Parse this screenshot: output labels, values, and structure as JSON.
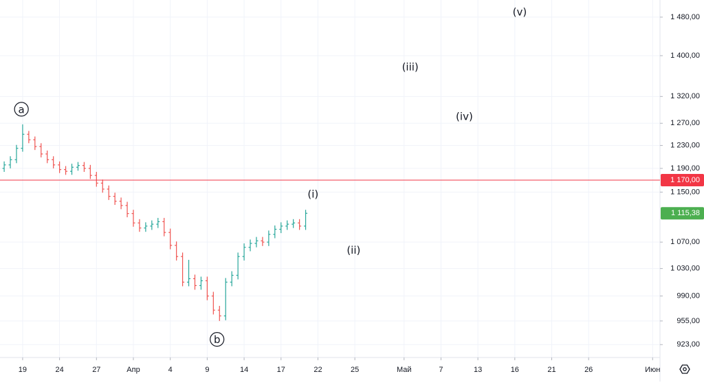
{
  "chart_data": {
    "type": "ohlc",
    "log_scale": true,
    "grid": true,
    "up_color": "#26a69a",
    "down_color": "#ef5350",
    "x": [
      -1.5,
      -1,
      -0.5,
      0,
      0.5,
      1,
      1.5,
      2,
      2.5,
      3,
      3.5,
      4,
      4.5,
      5,
      5.5,
      6,
      6.5,
      7,
      7.5,
      8,
      8.5,
      9,
      9.5,
      10,
      10.5,
      11,
      11.5,
      12,
      12.5,
      13,
      13.5,
      14,
      14.5,
      15,
      15.5,
      16,
      16.5,
      17,
      17.5,
      18,
      18.5,
      19,
      19.5,
      20,
      20.5,
      21,
      21.5,
      22,
      22.5,
      23
    ],
    "open": [
      1190,
      1196,
      1205,
      1225,
      1250,
      1240,
      1228,
      1215,
      1205,
      1196,
      1188,
      1185,
      1192,
      1195,
      1190,
      1178,
      1165,
      1155,
      1143,
      1135,
      1128,
      1115,
      1100,
      1092,
      1095,
      1098,
      1102,
      1085,
      1065,
      1048,
      1010,
      1015,
      1005,
      1012,
      990,
      970,
      962,
      1010,
      1020,
      1048,
      1062,
      1068,
      1072,
      1070,
      1082,
      1090,
      1095,
      1098,
      1100,
      1095
    ],
    "high": [
      1202,
      1211,
      1231,
      1268,
      1256,
      1246,
      1234,
      1221,
      1211,
      1202,
      1194,
      1198,
      1201,
      1201,
      1196,
      1184,
      1171,
      1161,
      1149,
      1141,
      1134,
      1121,
      1106,
      1101,
      1104,
      1108,
      1108,
      1091,
      1071,
      1054,
      1043,
      1021,
      1018,
      1018,
      996,
      976,
      1016,
      1026,
      1054,
      1068,
      1074,
      1078,
      1078,
      1088,
      1096,
      1101,
      1104,
      1106,
      1106,
      1121
    ],
    "low": [
      1184,
      1190,
      1199,
      1219,
      1234,
      1222,
      1209,
      1199,
      1190,
      1182,
      1179,
      1179,
      1186,
      1184,
      1172,
      1159,
      1149,
      1137,
      1129,
      1122,
      1109,
      1094,
      1086,
      1086,
      1089,
      1092,
      1079,
      1059,
      1042,
      1004,
      1004,
      999,
      999,
      984,
      964,
      955,
      956,
      1004,
      1014,
      1042,
      1056,
      1062,
      1064,
      1064,
      1076,
      1084,
      1089,
      1092,
      1089,
      1089
    ],
    "close": [
      1196,
      1205,
      1225,
      1250,
      1240,
      1228,
      1215,
      1205,
      1196,
      1188,
      1185,
      1192,
      1195,
      1190,
      1178,
      1165,
      1155,
      1143,
      1135,
      1128,
      1115,
      1100,
      1092,
      1095,
      1098,
      1102,
      1085,
      1065,
      1048,
      1010,
      1015,
      1005,
      1012,
      990,
      970,
      962,
      1010,
      1020,
      1048,
      1062,
      1068,
      1072,
      1070,
      1082,
      1090,
      1095,
      1098,
      1100,
      1095,
      1115.38
    ],
    "xlim": [
      -1.84,
      51.8
    ],
    "xticks": [
      {
        "value": 0,
        "label": "19"
      },
      {
        "value": 3,
        "label": "24"
      },
      {
        "value": 6,
        "label": "27"
      },
      {
        "value": 9,
        "label": "Апр"
      },
      {
        "value": 12,
        "label": "4"
      },
      {
        "value": 15,
        "label": "9"
      },
      {
        "value": 18,
        "label": "14"
      },
      {
        "value": 21,
        "label": "17"
      },
      {
        "value": 24,
        "label": "22"
      },
      {
        "value": 27,
        "label": "25"
      },
      {
        "value": 31,
        "label": "Май"
      },
      {
        "value": 34,
        "label": "7"
      },
      {
        "value": 37,
        "label": "13"
      },
      {
        "value": 40,
        "label": "16"
      },
      {
        "value": 43,
        "label": "21"
      },
      {
        "value": 46,
        "label": "26"
      },
      {
        "value": 51.2,
        "label": "Июн"
      }
    ],
    "ylim": [
      906,
      1517
    ],
    "yticks": [
      {
        "value": 1480,
        "label": "1 480,00"
      },
      {
        "value": 1400,
        "label": "1 400,00"
      },
      {
        "value": 1320,
        "label": "1 320,00"
      },
      {
        "value": 1270,
        "label": "1 270,00"
      },
      {
        "value": 1230,
        "label": "1 230,00"
      },
      {
        "value": 1190,
        "label": "1 190,00"
      },
      {
        "value": 1150,
        "label": "1 150,00"
      },
      {
        "value": 1070,
        "label": "1 070,00"
      },
      {
        "value": 1030,
        "label": "1 030,00"
      },
      {
        "value": 990,
        "label": "990,00"
      },
      {
        "value": 955,
        "label": "955,00"
      },
      {
        "value": 923,
        "label": "923,00"
      }
    ],
    "level": {
      "value": 1170,
      "label": "1 170,00",
      "color": "#f23645"
    },
    "last_price": {
      "value": 1115.38,
      "label": "1 115,38",
      "color": "#4caf50"
    },
    "annotations": [
      {
        "text": "a",
        "circled": true,
        "x": -0.1,
        "y": 1296
      },
      {
        "text": "b",
        "circled": true,
        "x": 15.8,
        "y": 930
      },
      {
        "text": "(i)",
        "x": 23.6,
        "y": 1147
      },
      {
        "text": "(ii)",
        "x": 26.9,
        "y": 1058
      },
      {
        "text": "(iii)",
        "x": 31.5,
        "y": 1378
      },
      {
        "text": "(iv)",
        "x": 35.9,
        "y": 1283
      },
      {
        "text": "(v)",
        "x": 40.4,
        "y": 1492
      }
    ]
  }
}
